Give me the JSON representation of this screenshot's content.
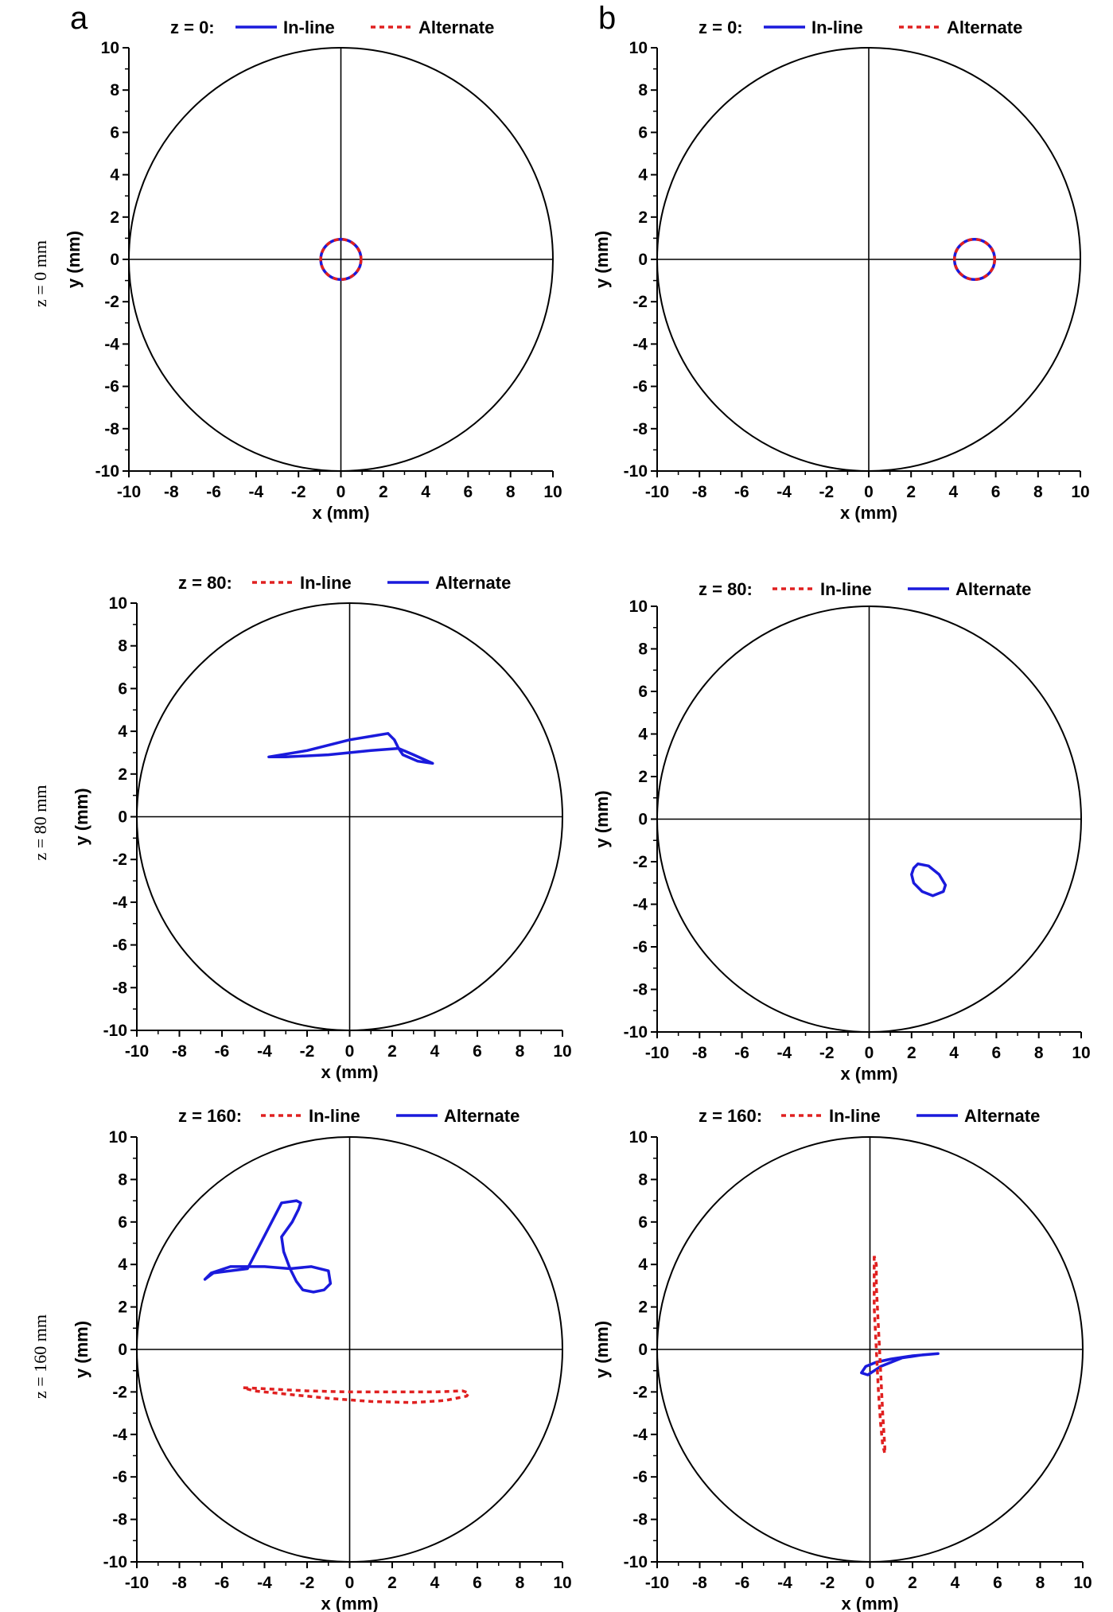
{
  "figure": {
    "panel_letters": [
      "a",
      "b"
    ],
    "row_labels": [
      "z = 0 mm",
      "z = 80 mm",
      "z = 160 mm"
    ],
    "colors": {
      "inline": "#e02020",
      "alternate": "#1a1adc",
      "axes": "#000000"
    }
  },
  "chart_data": [
    {
      "type": "line",
      "panel": "a",
      "row": 0,
      "legend": {
        "prefix": "z = 0:",
        "entries": [
          {
            "label": "In-line",
            "style": "solid",
            "color": "#1a1adc"
          },
          {
            "label": "Alternate",
            "style": "dotted",
            "color": "#e02020"
          }
        ]
      },
      "xlabel": "x (mm)",
      "ylabel": "y (mm)",
      "xlim": [
        -10,
        10
      ],
      "ylim": [
        -10,
        10
      ],
      "xticks": [
        -10,
        -8,
        -6,
        -4,
        -2,
        0,
        2,
        4,
        6,
        8,
        10
      ],
      "yticks": [
        -10,
        -8,
        -6,
        -4,
        -2,
        0,
        2,
        4,
        6,
        8,
        10
      ],
      "boundary_circle": {
        "cx": 0,
        "cy": 0,
        "r": 10
      },
      "series": [
        {
          "label": "In-line",
          "style": "solid",
          "color": "#1a1adc",
          "shape": "circle",
          "cx": 0,
          "cy": 0,
          "r": 0.95
        },
        {
          "label": "Alternate",
          "style": "dotted",
          "color": "#e02020",
          "shape": "circle",
          "cx": 0,
          "cy": 0,
          "r": 0.95
        }
      ]
    },
    {
      "type": "line",
      "panel": "b",
      "row": 0,
      "legend": {
        "prefix": "z = 0:",
        "entries": [
          {
            "label": "In-line",
            "style": "solid",
            "color": "#1a1adc"
          },
          {
            "label": "Alternate",
            "style": "dotted",
            "color": "#e02020"
          }
        ]
      },
      "xlabel": "x (mm)",
      "ylabel": "y (mm)",
      "xlim": [
        -10,
        10
      ],
      "ylim": [
        -10,
        10
      ],
      "xticks": [
        -10,
        -8,
        -6,
        -4,
        -2,
        0,
        2,
        4,
        6,
        8,
        10
      ],
      "yticks": [
        -10,
        -8,
        -6,
        -4,
        -2,
        0,
        2,
        4,
        6,
        8,
        10
      ],
      "boundary_circle": {
        "cx": 0,
        "cy": 0,
        "r": 10
      },
      "series": [
        {
          "label": "In-line",
          "style": "solid",
          "color": "#1a1adc",
          "shape": "circle",
          "cx": 5,
          "cy": 0,
          "r": 0.95
        },
        {
          "label": "Alternate",
          "style": "dotted",
          "color": "#e02020",
          "shape": "circle",
          "cx": 5,
          "cy": 0,
          "r": 0.95
        }
      ]
    },
    {
      "type": "line",
      "panel": "a",
      "row": 1,
      "legend": {
        "prefix": "z = 80:",
        "entries": [
          {
            "label": "In-line",
            "style": "dotted",
            "color": "#e02020"
          },
          {
            "label": "Alternate",
            "style": "solid",
            "color": "#1a1adc"
          }
        ]
      },
      "xlabel": "x (mm)",
      "ylabel": "y (mm)",
      "xlim": [
        -10,
        10
      ],
      "ylim": [
        -10,
        10
      ],
      "xticks": [
        -10,
        -8,
        -6,
        -4,
        -2,
        0,
        2,
        4,
        6,
        8,
        10
      ],
      "yticks": [
        -10,
        -8,
        -6,
        -4,
        -2,
        0,
        2,
        4,
        6,
        8,
        10
      ],
      "boundary_circle": {
        "cx": 0,
        "cy": 0,
        "r": 10
      },
      "series": [
        {
          "label": "Alternate",
          "style": "solid",
          "color": "#1a1adc",
          "closed": true,
          "x": [
            -3.8,
            -2.0,
            0.0,
            1.2,
            1.8,
            2.1,
            2.3,
            2.5,
            3.2,
            3.9,
            3.0,
            2.3,
            1.0,
            -1.0,
            -3.0,
            -3.8
          ],
          "y": [
            2.8,
            3.1,
            3.6,
            3.8,
            3.9,
            3.6,
            3.2,
            2.9,
            2.6,
            2.5,
            2.9,
            3.2,
            3.1,
            2.9,
            2.8,
            2.8
          ]
        }
      ]
    },
    {
      "type": "line",
      "panel": "b",
      "row": 1,
      "legend": {
        "prefix": "z = 80:",
        "entries": [
          {
            "label": "In-line",
            "style": "dotted",
            "color": "#e02020"
          },
          {
            "label": "Alternate",
            "style": "solid",
            "color": "#1a1adc"
          }
        ]
      },
      "xlabel": "x (mm)",
      "ylabel": "y (mm)",
      "xlim": [
        -10,
        10
      ],
      "ylim": [
        -10,
        10
      ],
      "xticks": [
        -10,
        -8,
        -6,
        -4,
        -2,
        0,
        2,
        4,
        6,
        8,
        10
      ],
      "yticks": [
        -10,
        -8,
        -6,
        -4,
        -2,
        0,
        2,
        4,
        6,
        8,
        10
      ],
      "boundary_circle": {
        "cx": 0,
        "cy": 0,
        "r": 10
      },
      "series": [
        {
          "label": "Alternate",
          "style": "solid",
          "color": "#1a1adc",
          "closed": true,
          "x": [
            2.3,
            2.8,
            3.3,
            3.6,
            3.5,
            3.0,
            2.5,
            2.1,
            2.0,
            2.1,
            2.3
          ],
          "y": [
            -2.1,
            -2.2,
            -2.6,
            -3.1,
            -3.4,
            -3.6,
            -3.4,
            -3.0,
            -2.6,
            -2.3,
            -2.1
          ]
        }
      ]
    },
    {
      "type": "line",
      "panel": "a",
      "row": 2,
      "legend": {
        "prefix": "z = 160:",
        "entries": [
          {
            "label": "In-line",
            "style": "dotted",
            "color": "#e02020"
          },
          {
            "label": "Alternate",
            "style": "solid",
            "color": "#1a1adc"
          }
        ]
      },
      "xlabel": "x (mm)",
      "ylabel": "y (mm)",
      "xlim": [
        -10,
        10
      ],
      "ylim": [
        -10,
        10
      ],
      "xticks": [
        -10,
        -8,
        -6,
        -4,
        -2,
        0,
        2,
        4,
        6,
        8,
        10
      ],
      "yticks": [
        -10,
        -8,
        -6,
        -4,
        -2,
        0,
        2,
        4,
        6,
        8,
        10
      ],
      "boundary_circle": {
        "cx": 0,
        "cy": 0,
        "r": 10
      },
      "series": [
        {
          "label": "Alternate",
          "style": "solid",
          "color": "#1a1adc",
          "closed": false,
          "x": [
            -6.8,
            -6.5,
            -5.6,
            -4.0,
            -2.8,
            -1.8,
            -1.0,
            -0.9,
            -1.2,
            -1.7,
            -2.2,
            -2.5,
            -2.8,
            -3.1,
            -3.2,
            -2.7,
            -2.4,
            -2.3,
            -2.5,
            -2.5,
            -3.2,
            -4.8,
            -6.4,
            -6.8
          ],
          "y": [
            3.3,
            3.6,
            3.9,
            3.9,
            3.8,
            3.9,
            3.7,
            3.1,
            2.8,
            2.7,
            2.8,
            3.2,
            3.8,
            4.6,
            5.3,
            6.0,
            6.6,
            6.9,
            7.0,
            7.0,
            6.9,
            3.8,
            3.6,
            3.3
          ]
        },
        {
          "label": "In-line",
          "style": "dotted",
          "color": "#e02020",
          "closed": false,
          "x": [
            -5.0,
            -4.0,
            -2.0,
            0.0,
            2.0,
            4.0,
            5.3,
            5.6,
            5.5,
            4.5,
            3.0,
            1.0,
            -1.0,
            -3.0,
            -4.5,
            -5.0
          ],
          "y": [
            -1.8,
            -1.85,
            -1.95,
            -2.0,
            -2.0,
            -2.0,
            -1.95,
            -2.05,
            -2.2,
            -2.4,
            -2.5,
            -2.45,
            -2.3,
            -2.1,
            -1.95,
            -1.8
          ]
        }
      ]
    },
    {
      "type": "line",
      "panel": "b",
      "row": 2,
      "legend": {
        "prefix": "z = 160:",
        "entries": [
          {
            "label": "In-line",
            "style": "dotted",
            "color": "#e02020"
          },
          {
            "label": "Alternate",
            "style": "solid",
            "color": "#1a1adc"
          }
        ]
      },
      "xlabel": "x (mm)",
      "ylabel": "y (mm)",
      "xlim": [
        -10,
        10
      ],
      "ylim": [
        -10,
        10
      ],
      "xticks": [
        -10,
        -8,
        -6,
        -4,
        -2,
        0,
        2,
        4,
        6,
        8,
        10
      ],
      "yticks": [
        -10,
        -8,
        -6,
        -4,
        -2,
        0,
        2,
        4,
        6,
        8,
        10
      ],
      "boundary_circle": {
        "cx": 0,
        "cy": 0,
        "r": 10
      },
      "series": [
        {
          "label": "Alternate",
          "style": "solid",
          "color": "#1a1adc",
          "closed": false,
          "x": [
            3.2,
            2.5,
            1.5,
            0.5,
            -0.1,
            -0.4,
            -0.2,
            0.3,
            1.0,
            2.0,
            3.2
          ],
          "y": [
            -0.2,
            -0.25,
            -0.4,
            -0.8,
            -1.2,
            -1.1,
            -0.8,
            -0.6,
            -0.45,
            -0.3,
            -0.2
          ]
        },
        {
          "label": "In-line",
          "style": "dotted",
          "color": "#e02020",
          "closed": false,
          "x": [
            0.2,
            0.2,
            0.3,
            0.4,
            0.5,
            0.6,
            0.7,
            0.7,
            0.6,
            0.5,
            0.4,
            0.3,
            0.3,
            0.2
          ],
          "y": [
            4.4,
            2.0,
            0.0,
            -2.0,
            -3.5,
            -4.5,
            -4.9,
            -4.6,
            -3.0,
            -1.0,
            1.0,
            3.0,
            4.0,
            4.4
          ]
        }
      ]
    }
  ]
}
